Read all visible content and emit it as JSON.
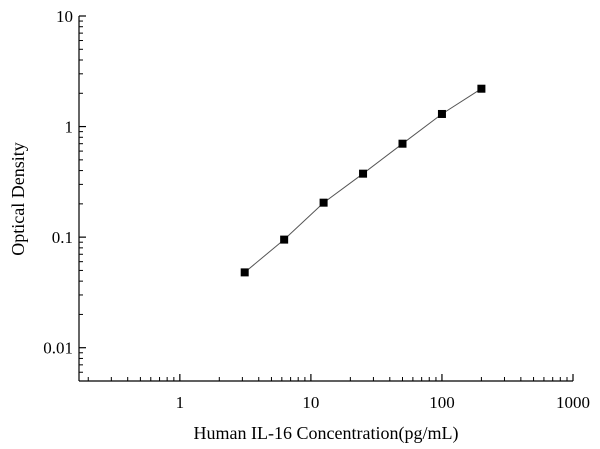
{
  "chart_data": {
    "type": "scatter",
    "title": "",
    "xlabel": "Human IL-16 Concentration(pg/mL)",
    "ylabel": "Optical Density",
    "xscale": "log",
    "yscale": "log",
    "xlim": [
      0.17,
      1000
    ],
    "ylim": [
      0.005,
      10
    ],
    "xticks": [
      1,
      10,
      100,
      1000
    ],
    "xtick_labels": [
      "1",
      "10",
      "100",
      "1000"
    ],
    "yticks": [
      0.01,
      0.1,
      1,
      10
    ],
    "ytick_labels": [
      "0.01",
      "0.1",
      "1",
      "10"
    ],
    "grid": false,
    "legend": "none",
    "marker": "square",
    "marker_color": "#000000",
    "line_color": "#555555",
    "series": [
      {
        "x": [
          3.125,
          6.25,
          12.5,
          25,
          50,
          100,
          200
        ],
        "y": [
          0.048,
          0.095,
          0.205,
          0.375,
          0.7,
          1.3,
          2.2
        ]
      }
    ]
  }
}
